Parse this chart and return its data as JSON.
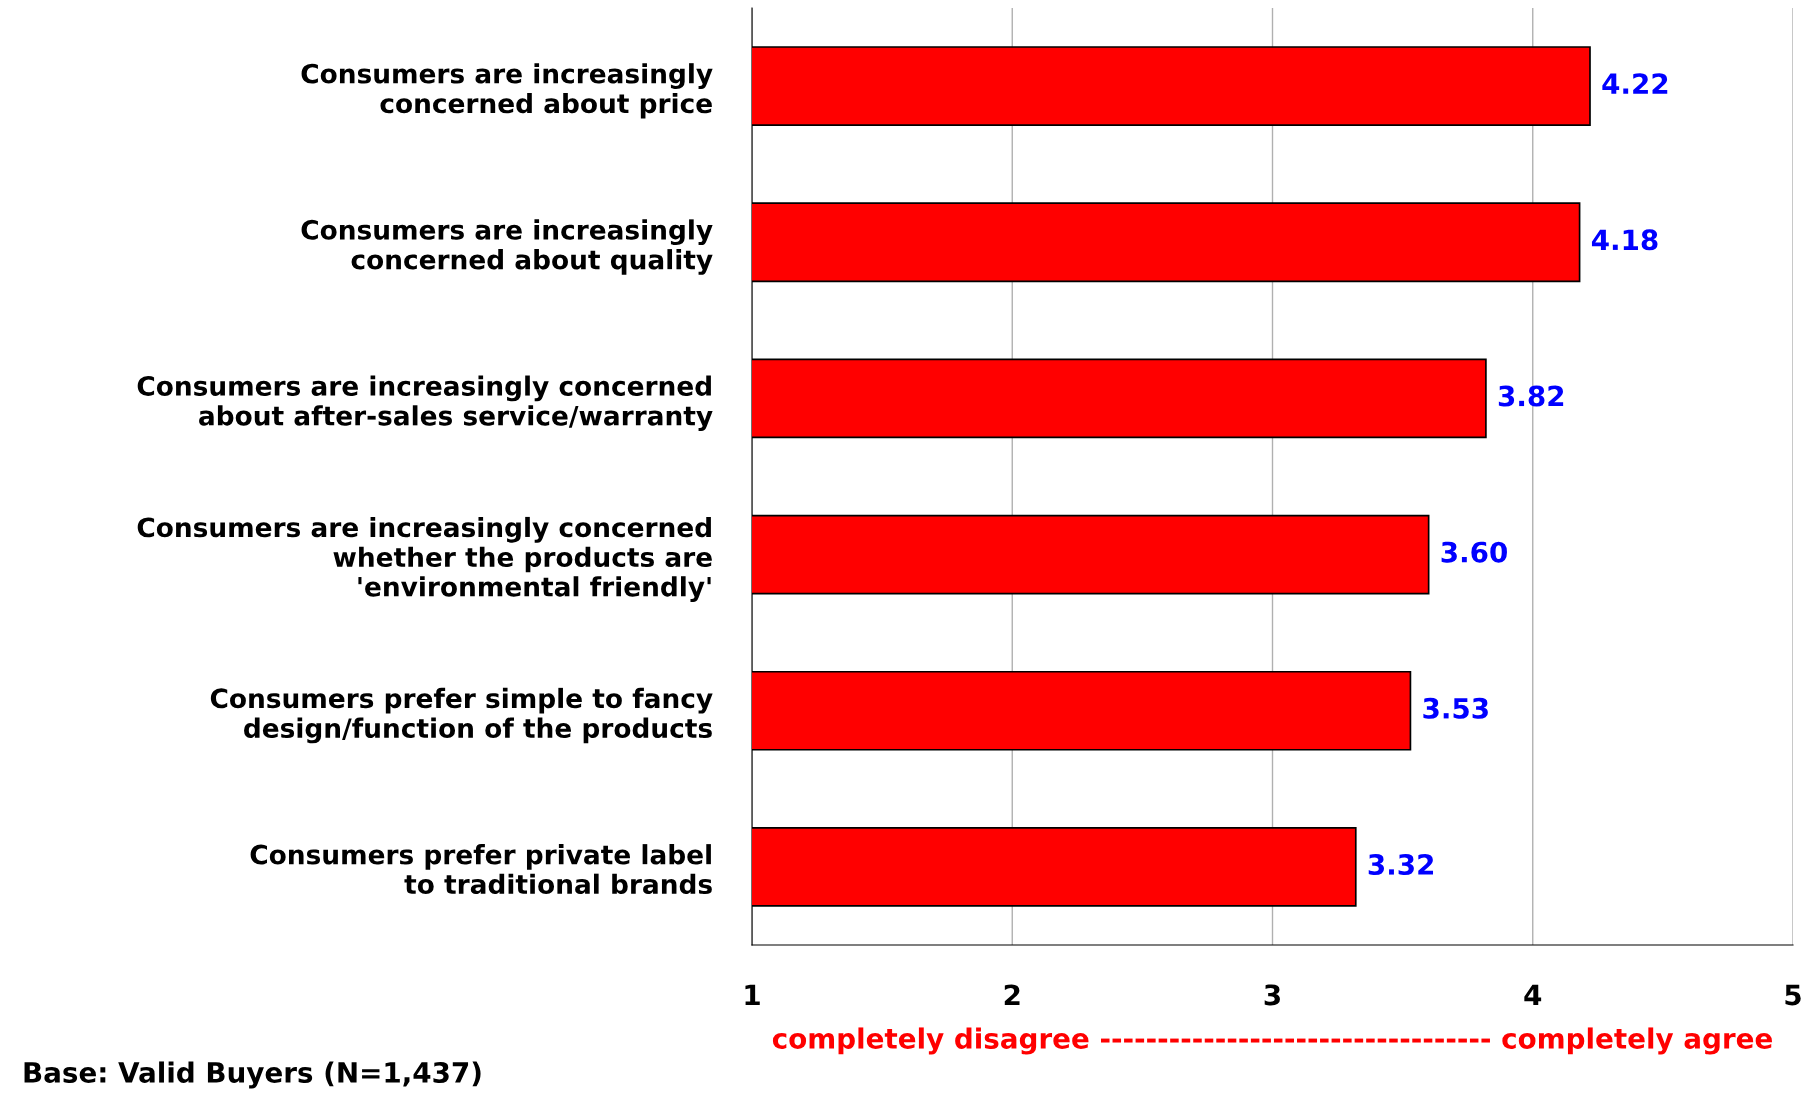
{
  "chart_data": {
    "type": "bar",
    "orientation": "horizontal",
    "categories": [
      "Consumers are increasingly\nconcerned about price",
      "Consumers are increasingly\nconcerned about quality",
      "Consumers are increasingly concerned\nabout after-sales service/warranty",
      "Consumers are increasingly concerned\nwhether the products are\n'environmental friendly'",
      "Consumers prefer simple to fancy\ndesign/function of the products",
      "Consumers prefer private label\nto traditional brands"
    ],
    "values": [
      4.22,
      4.18,
      3.82,
      3.6,
      3.53,
      3.32
    ],
    "value_labels": [
      "4.22",
      "4.18",
      "3.82",
      "3.60",
      "3.53",
      "3.32"
    ],
    "color": "#ff0000",
    "xlim": [
      1,
      5
    ],
    "xticks": [
      1,
      2,
      3,
      4,
      5
    ],
    "grid": "x",
    "legend": false,
    "xlabel": "completely disagree ---------------------------------- completely agree",
    "annotations": [
      "Base: Valid Buyers (N=1,437)"
    ]
  }
}
